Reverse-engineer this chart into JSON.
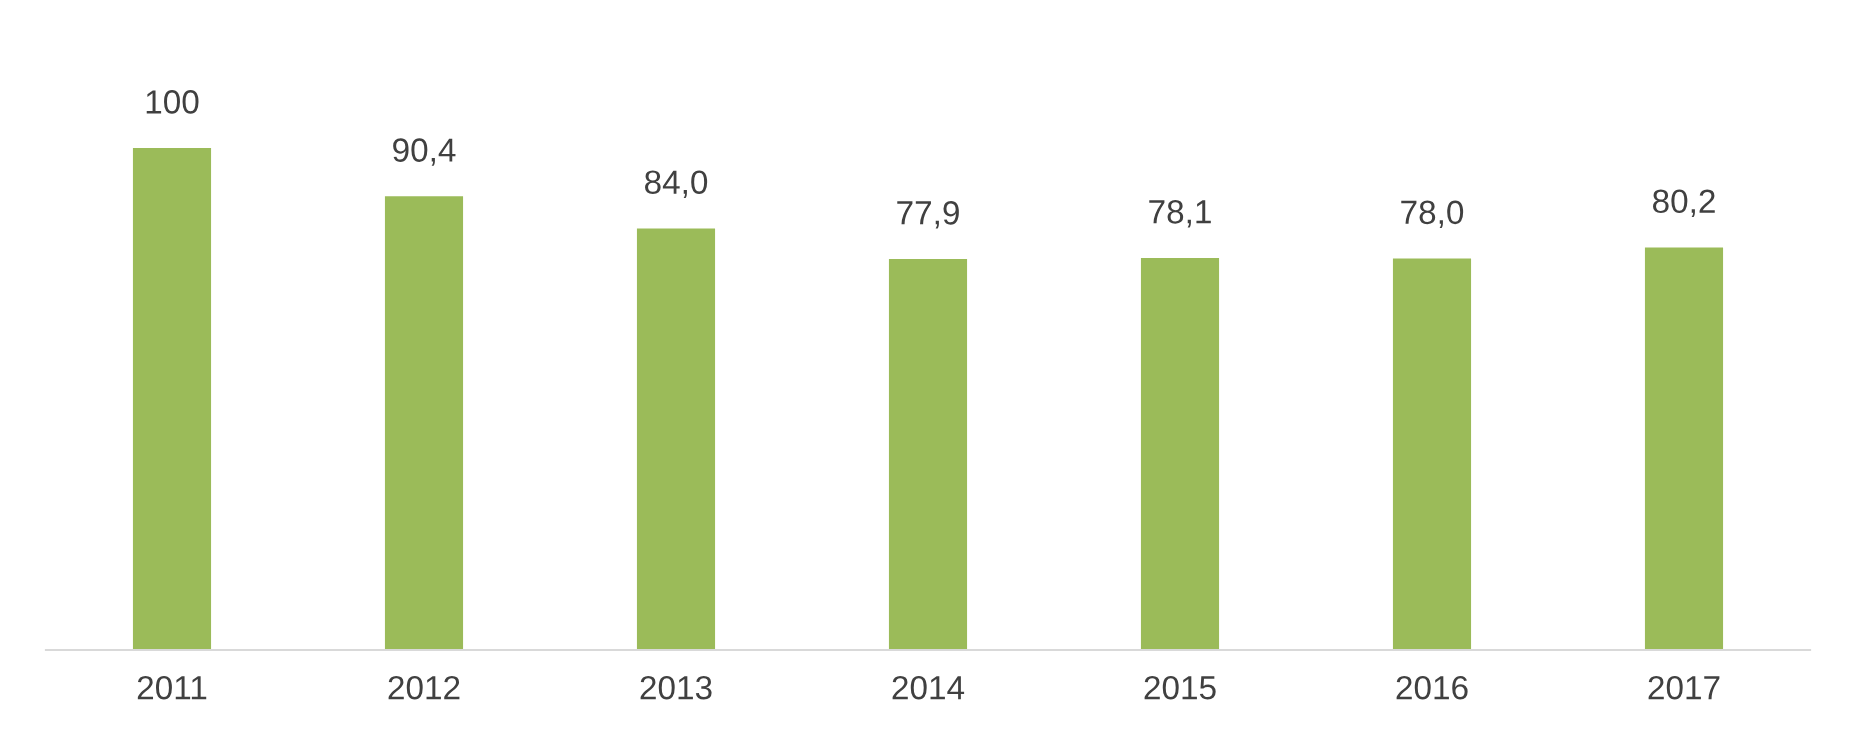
{
  "chart_data": {
    "type": "bar",
    "categories": [
      "2011",
      "2012",
      "2013",
      "2014",
      "2015",
      "2016",
      "2017"
    ],
    "values": [
      100,
      90.4,
      84.0,
      77.9,
      78.1,
      78.0,
      80.2
    ],
    "value_labels": [
      "100",
      "90,4",
      "84,0",
      "77,9",
      "78,1",
      "78,0",
      "80,2"
    ],
    "color": "#9bbb59",
    "grid": false,
    "legend": false,
    "tick_labels": "x"
  }
}
